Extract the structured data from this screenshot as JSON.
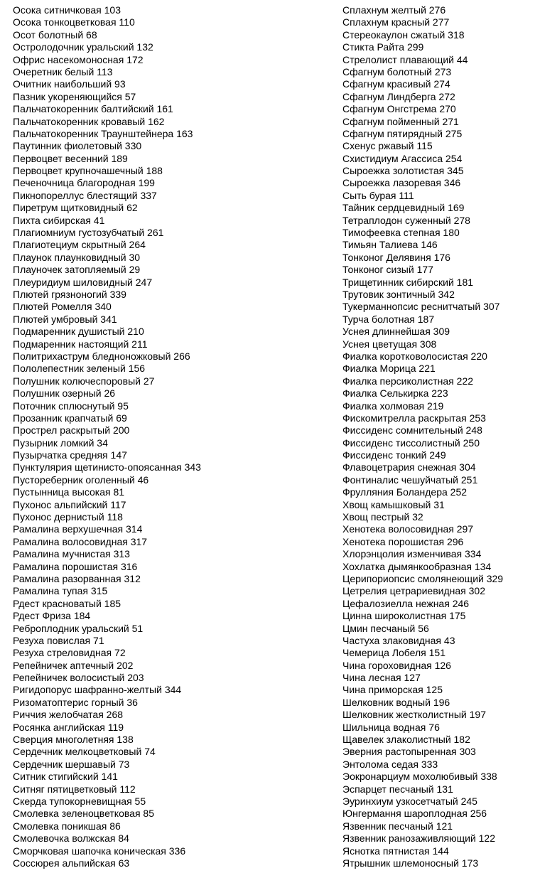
{
  "index": {
    "left_column": [
      "Осока ситничковая 103",
      "Осока тонкоцветковая 110",
      "Осот болотный 68",
      "Остролодочник уральский 132",
      "Офрис насекомоносная 172",
      "Очеретник белый 113",
      "Очитник наибольший 93",
      "Пазник укореняющийся 57",
      "Пальчатокоренник балтийский 161",
      "Пальчатокоренник кровавый 162",
      "Пальчатокоренник Траунштейнера 163",
      "Паутинник фиолетовый 330",
      "Первоцвет весенний 189",
      "Первоцвет крупночашечный 188",
      "Печеночница благородная 199",
      "Пикнопореллус блестящий 337",
      "Пиретрум щитковидный 62",
      "Пихта сибирская 41",
      "Плагиомниум густозубчатый 261",
      "Плагиотециум скрытный 264",
      "Плаунок плаунковидный 30",
      "Плауночек затопляемый 29",
      "Плеуридиум шиловидный 247",
      "Плютей грязноногий 339",
      "Плютей Ромелля 340",
      "Плютей умбровый 341",
      "Подмаренник душистый 210",
      "Подмаренник настоящий 211",
      "Политрихаструм бледноножковый 266",
      "Пололепестник зеленый 156",
      "Полушник колючеспоровый 27",
      "Полушник озерный 26",
      "Поточник сплюснутый 95",
      "Прозанник крапчатый 69",
      "Прострел раскрытый 200",
      "Пузырник ломкий 34",
      "Пузырчатка средняя 147",
      "Пунктулярия щетинисто-опоясанная 343",
      "Пустореберник оголенный 46",
      "Пустынница высокая 81",
      "Пухонос альпийский 117",
      "Пухонос дернистый 118",
      "Рамалина верхушечная 314",
      "Рамалина волосовидная 317",
      "Рамалина мучнистая 313",
      "Рамалина порошистая 316",
      "Рамалина разорванная 312",
      "Рамалина тупая 315",
      "Рдест красноватый 185",
      "Рдест Фриза 184",
      "Реброплодник уральский 51",
      "Резуха повислая 71",
      "Резуха стреловидная 72",
      "Репейничек аптечный 202",
      "Репейничек волосистый 203",
      "Ригидопорус шафранно-желтый 344",
      "Ризоматоптерис горный 36",
      "Риччия желобчатая 268",
      "Росянка английская 119",
      "Сверция многолетняя 138",
      "Сердечник мелкоцветковый 74",
      "Сердечник шершавый 73",
      "Ситник стигийский 141",
      "Ситняг пятицветковый 112",
      "Скерда тупокорневищная 55",
      "Смолевка зеленоцветковая 85",
      "Смолевка поникшая 86",
      "Смолевочка волжская 84",
      "Сморчковая шапочка коническая 336",
      "Соссюрея альпийская 63"
    ],
    "right_column": [
      "Сплахнум желтый 276",
      "Сплахнум красный 277",
      "Стереокаулон сжатый 318",
      "Стикта Райта 299",
      "Стрелолист плавающий 44",
      "Сфагнум болотный 273",
      "Сфагнум красивый 274",
      "Сфагнум Линдберга 272",
      "Сфагнум Онгстрема 270",
      "Сфагнум пойменный 271",
      "Сфагнум пятирядный 275",
      "Схенус ржавый 115",
      "Схистидиум Агассиса 254",
      "Сыроежка золотистая 345",
      "Сыроежка лазоревая 346",
      "Сыть бурая 111",
      "Тайник сердцевидный 169",
      "Тетраплодон суженный 278",
      "Тимофеевка степная 180",
      "Тимьян Талиева 146",
      "Тонконог Делявиня 176",
      "Тонконог сизый 177",
      "Трищетинник сибирский 181",
      "Трутовик зонтичный 342",
      "Тукерманнопсис реснитчатый 307",
      "Турча болотная 187",
      "Уснея длиннейшая 309",
      "Уснея цветущая 308",
      "Фиалка коротковолосистая 220",
      "Фиалка Морица 221",
      "Фиалка персиколистная 222",
      "Фиалка Селькирка 223",
      "Фиалка холмовая 219",
      "Фискомитрелла раскрытая 253",
      "Фиссиденс сомнительный 248",
      "Фиссиденс тиссолистный 250",
      "Фиссиденс тонкий 249",
      "Флавоцетрария снежная 304",
      "Фонтиналис чешуйчатый 251",
      "Фрулляния Боландера 252",
      "Хвощ камышковый 31",
      "Хвощ пестрый 32",
      "Хенотека волосовидная 297",
      "Хенотека порошистая 296",
      "Хлорэнцолия изменчивая 334",
      "Хохлатка дымянкообразная 134",
      "Церипориопсис смолянеющий 329",
      "Цетрелия цетрариевидная 302",
      "Цефалозиелла нежная 246",
      "Цинна широколистная 175",
      "Цмин песчаный 56",
      "Частуха злаковидная 43",
      "Чемерица Лобеля 151",
      "Чина гороховидная 126",
      "Чина лесная 127",
      "Чина приморская 125",
      "Шелковник водный 196",
      "Шелковник жестколистный 197",
      "Шильница водная 76",
      "Щавелек злаколистный 182",
      "Эверния растопыренная 303",
      "Энтолома седая 333",
      "Эокронарциум мохолюбивый 338",
      "Эспарцет песчаный 131",
      "Эуринхиум узкосетчатый 245",
      "Юнгермання шароплодная 256",
      "Язвенник песчаный 121",
      "Язвенник ранозаживляющий 122",
      "Яснотка пятнистая 144",
      "Ятрышник шлемоносный 173"
    ]
  }
}
